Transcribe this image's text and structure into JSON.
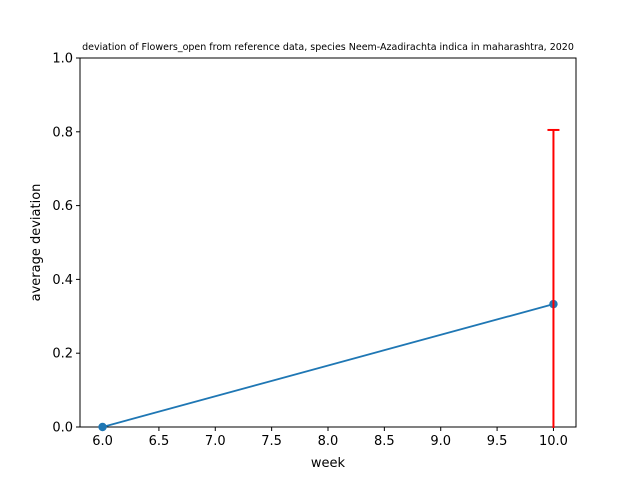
{
  "chart_data": {
    "type": "line",
    "title": "deviation of Flowers_open from reference data, species Neem-Azadirachta indica in maharashtra, 2020",
    "xlabel": "week",
    "ylabel": "average deviation",
    "xlim": [
      5.8,
      10.2
    ],
    "ylim": [
      0,
      1.0
    ],
    "xticks": [
      "6.0",
      "6.5",
      "7.0",
      "7.5",
      "8.0",
      "8.5",
      "9.0",
      "9.5",
      "10.0"
    ],
    "yticks": [
      "0.0",
      "0.2",
      "0.4",
      "0.6",
      "0.8",
      "1.0"
    ],
    "grid": false,
    "series": [
      {
        "x": [
          6.0,
          10.0
        ],
        "y": [
          0.0,
          0.333
        ],
        "color": "#1f77b4",
        "marker": "circle"
      }
    ],
    "error_bars": [
      {
        "x": 10.0,
        "y": 0.333,
        "upper": 0.805,
        "color": "#ff0000"
      }
    ]
  }
}
